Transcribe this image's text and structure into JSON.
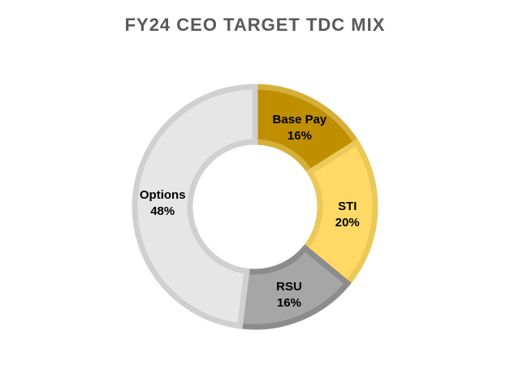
{
  "chart_data": {
    "type": "pie",
    "subtype": "donut",
    "title": "FY24 CEO TARGET TDC MIX",
    "categories": [
      "Base Pay",
      "STI",
      "RSU",
      "Options"
    ],
    "values": [
      16,
      20,
      16,
      48
    ],
    "value_labels": [
      "16%",
      "20%",
      "16%",
      "48%"
    ],
    "start_angle_deg": 0,
    "direction": "clockwise",
    "legend": "none",
    "colors": {
      "fills": [
        "#BF8F00",
        "#FFD966",
        "#A6A6A6",
        "#E7E6E6"
      ],
      "strokes": [
        "#D6AF3A",
        "#EAC95A",
        "#8C8C8C",
        "#D0D0D0"
      ]
    }
  }
}
